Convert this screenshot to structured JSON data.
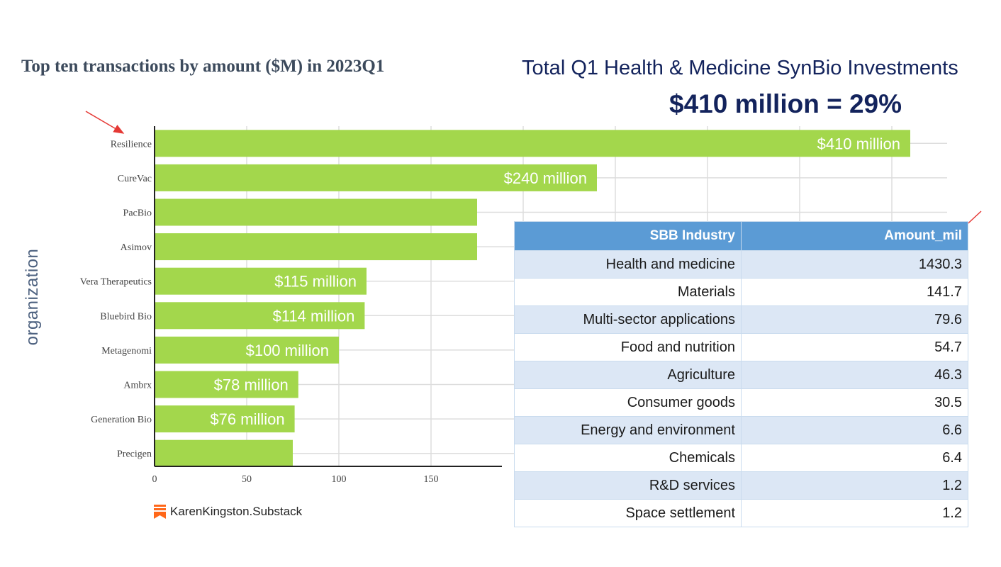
{
  "chart_data": {
    "type": "bar",
    "orientation": "horizontal",
    "title": "Top ten transactions by amount ($M) in 2023Q1",
    "ylabel": "organization",
    "xlabel": "",
    "xlim": [
      0,
      190
    ],
    "x_ticks": [
      "0",
      "50",
      "100",
      "150"
    ],
    "grid": true,
    "color": "#a3d74c",
    "categories": [
      "Resilience",
      "CureVac",
      "PacBio",
      "Asimov",
      "Vera Therapeutics",
      "Bluebird Bio",
      "Metagenomi",
      "Ambrx",
      "Generation Bio",
      "Precigen"
    ],
    "values": [
      410,
      240,
      175,
      175,
      115,
      114,
      100,
      78,
      76,
      75
    ],
    "data_labels": [
      "$410 million",
      "$240 million",
      "",
      "",
      "$115 million",
      "$114 million",
      "$100 million",
      "$78 million",
      "$76 million",
      ""
    ]
  },
  "headline": {
    "line1": "Total Q1 Health & Medicine SynBio Investments",
    "line2": "$410 million = 29%"
  },
  "credit": {
    "text": "KarenKingston.Substack",
    "icon": "substack-icon",
    "icon_color": "#ff6719"
  },
  "table": {
    "headers": [
      "SBB Industry",
      "Amount_mil"
    ],
    "rows": [
      [
        "Health and medicine",
        "1430.3"
      ],
      [
        "Materials",
        "141.7"
      ],
      [
        "Multi-sector applications",
        "79.6"
      ],
      [
        "Food and nutrition",
        "54.7"
      ],
      [
        "Agriculture",
        "46.3"
      ],
      [
        "Consumer goods",
        "30.5"
      ],
      [
        "Energy and environment",
        "6.6"
      ],
      [
        "Chemicals",
        "6.4"
      ],
      [
        "R&D services",
        "1.2"
      ],
      [
        "Space settlement",
        "1.2"
      ]
    ],
    "header_color": "#5b9bd5",
    "band_color": "#dce7f5"
  },
  "annotations": {
    "arrow_color": "#e53935",
    "arrows": [
      "arrow-to-resilience",
      "arrow-to-amount-header"
    ]
  }
}
